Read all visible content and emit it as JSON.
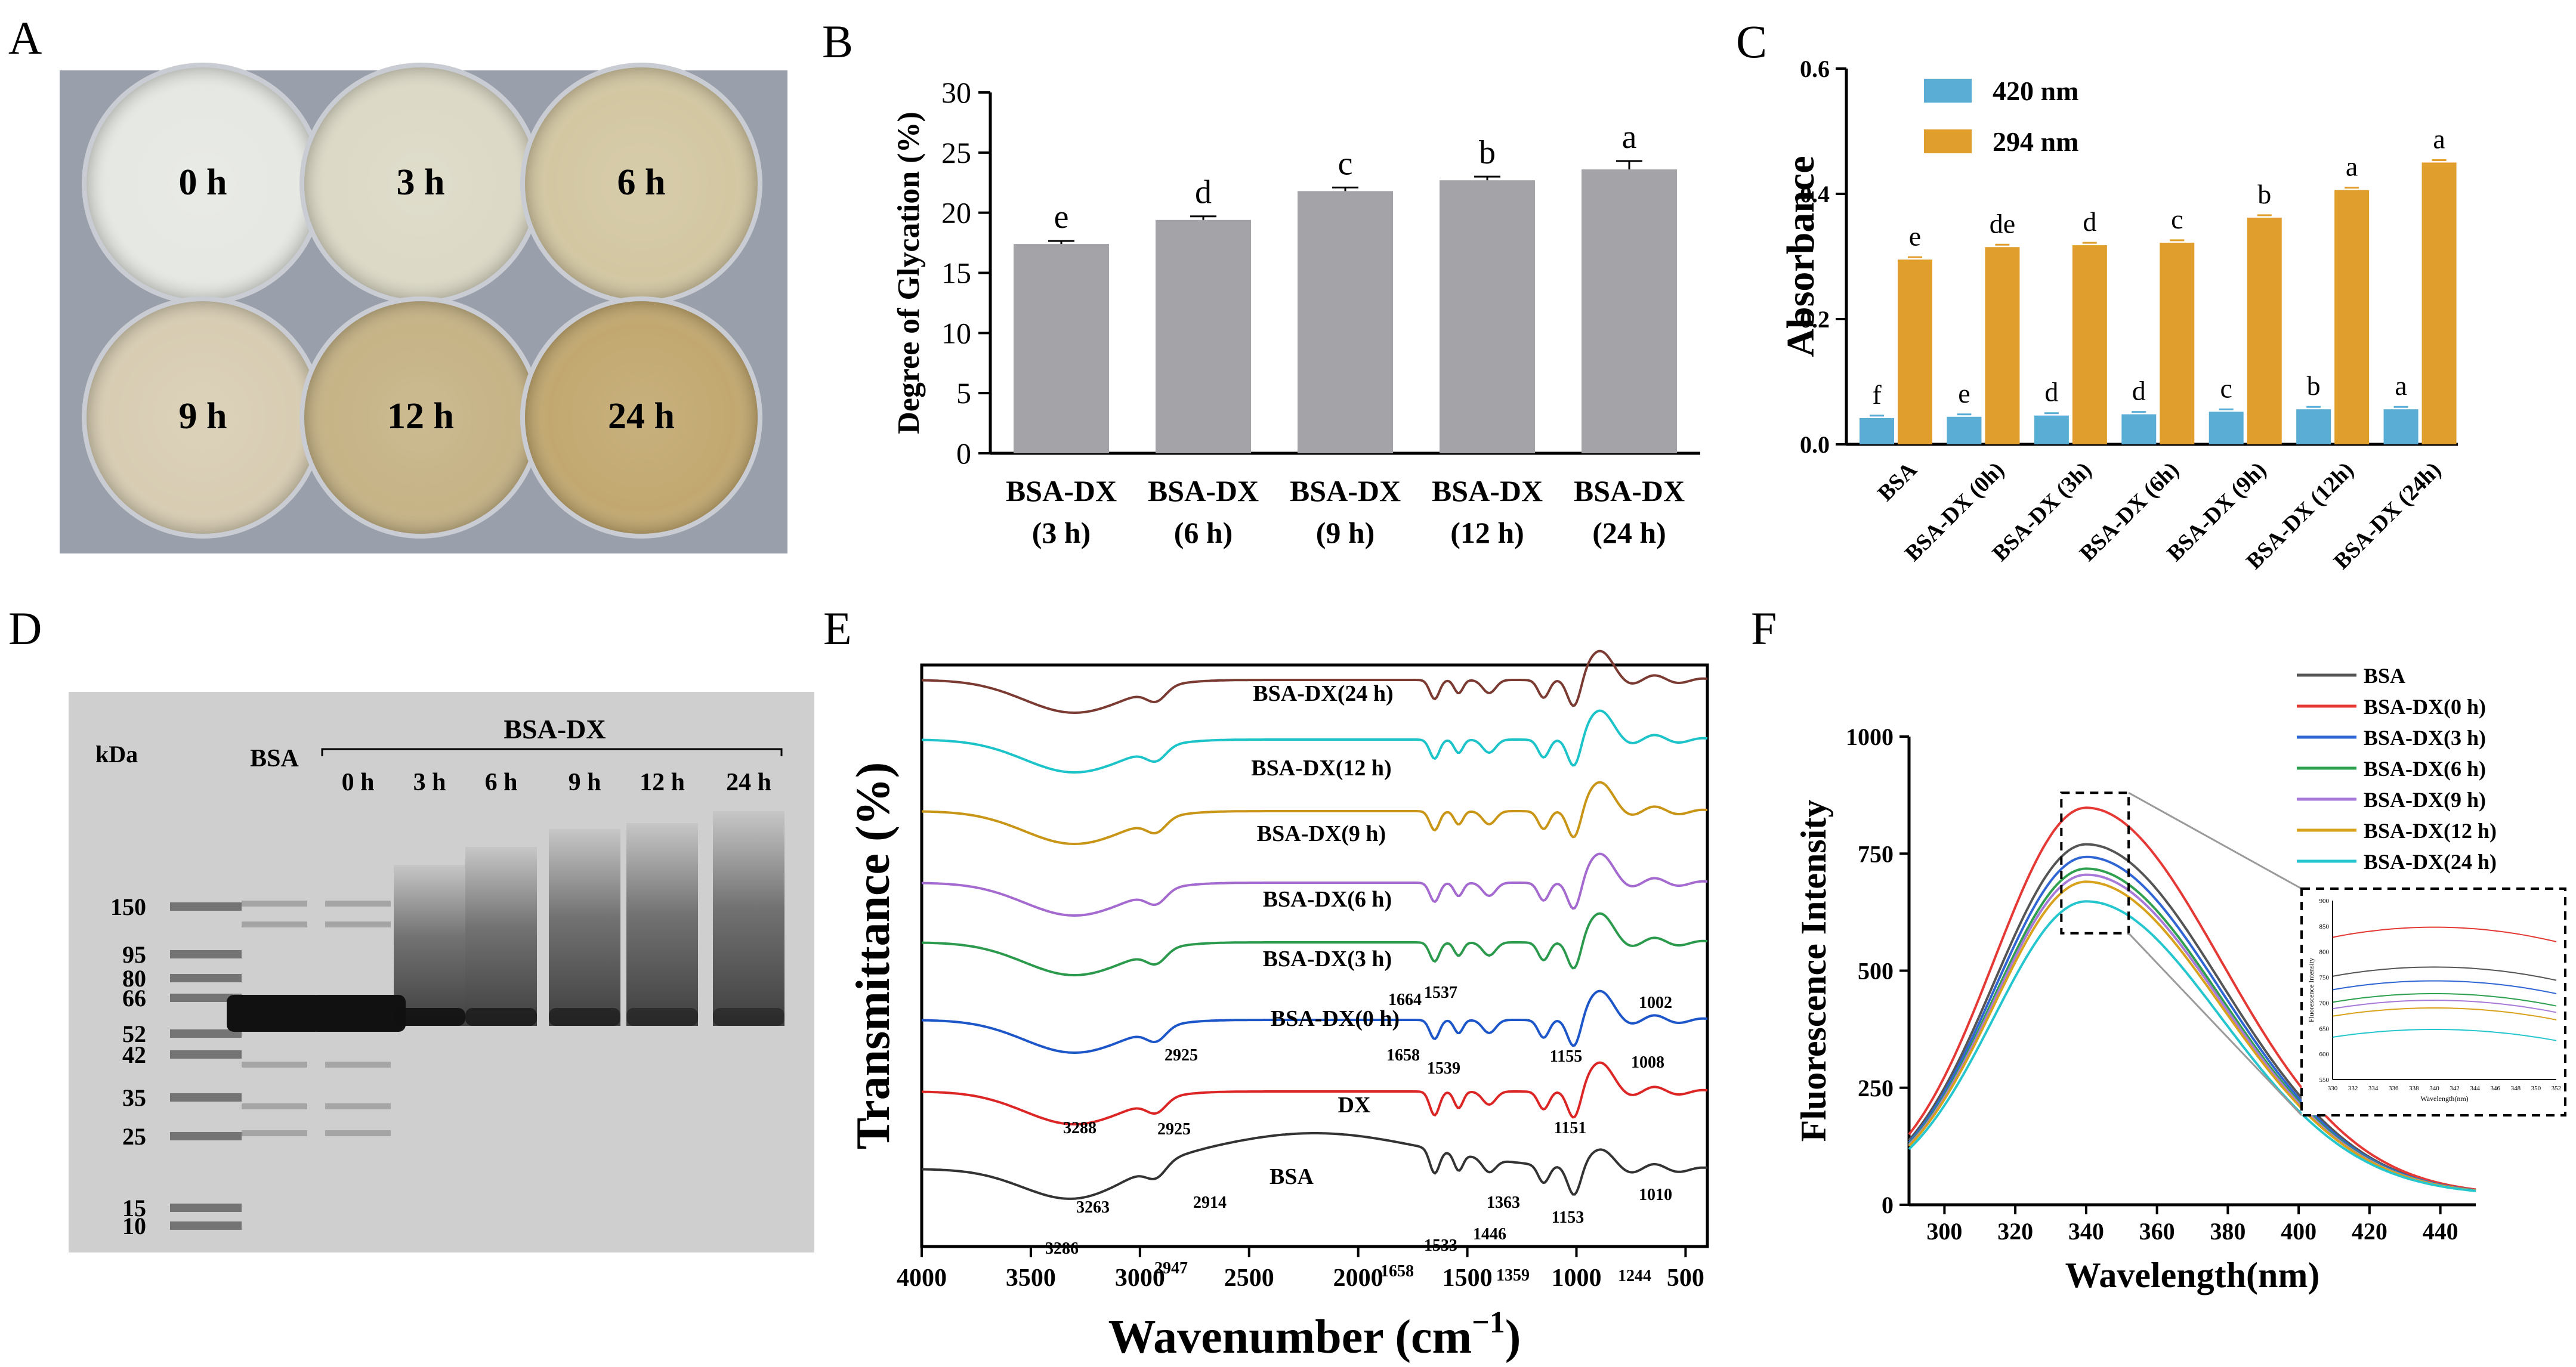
{
  "panel_letters": [
    "A",
    "B",
    "C",
    "D",
    "E",
    "F"
  ],
  "photo_A": {
    "dishes": [
      {
        "label": "0 h",
        "color": "#e6e8e3"
      },
      {
        "label": "3 h",
        "color": "#dcd9c6"
      },
      {
        "label": "6 h",
        "color": "#d3c7a2"
      },
      {
        "label": "9 h",
        "color": "#d8cdb3"
      },
      {
        "label": "12 h",
        "color": "#c6b386"
      },
      {
        "label": "24 h",
        "color": "#c2a870"
      }
    ]
  },
  "gel_D": {
    "kda_label": "kDa",
    "markers": [
      "150",
      "95",
      "80",
      "66",
      "52",
      "42",
      "35",
      "25",
      "15",
      "10"
    ],
    "lane_labels": [
      "BSA",
      "0 h",
      "3 h",
      "6 h",
      "9 h",
      "12 h",
      "24 h"
    ],
    "group_label": "BSA-DX"
  },
  "chart_data": [
    {
      "panel": "B",
      "type": "bar",
      "categories": [
        "BSA-DX (3 h)",
        "BSA-DX (6 h)",
        "BSA-DX (9 h)",
        "BSA-DX (12 h)",
        "BSA-DX (24 h)"
      ],
      "category_lines": [
        [
          "BSA-DX",
          "(3 h)"
        ],
        [
          "BSA-DX",
          "(6 h)"
        ],
        [
          "BSA-DX",
          "(9 h)"
        ],
        [
          "BSA-DX",
          "(12 h)"
        ],
        [
          "BSA-DX",
          "(24 h)"
        ]
      ],
      "values": [
        17.4,
        19.4,
        21.8,
        22.7,
        23.6
      ],
      "errors": [
        0.25,
        0.3,
        0.3,
        0.3,
        0.7
      ],
      "letters": [
        "e",
        "d",
        "c",
        "b",
        "a"
      ],
      "ylabel": "Degree of Glycation (%)",
      "ylim": [
        0,
        30
      ],
      "yticks": [
        "0",
        "5",
        "10",
        "15",
        "20",
        "25",
        "30"
      ],
      "color": "#a4a4a8"
    },
    {
      "panel": "C",
      "type": "bar",
      "categories": [
        "BSA",
        "BSA-DX (0h)",
        "BSA-DX (3h)",
        "BSA-DX (6h)",
        "BSA-DX (9h)",
        "BSA-DX (12h)",
        "BSA-DX (24h)"
      ],
      "series": [
        {
          "name": "420 nm",
          "color": "#5aaed6",
          "values": [
            0.042,
            0.044,
            0.046,
            0.048,
            0.052,
            0.056,
            0.056
          ],
          "letters": [
            "f",
            "e",
            "d",
            "d",
            "c",
            "b",
            "a"
          ]
        },
        {
          "name": "294 nm",
          "color": "#e09e2c",
          "values": [
            0.295,
            0.315,
            0.318,
            0.322,
            0.362,
            0.406,
            0.45
          ],
          "letters": [
            "e",
            "de",
            "d",
            "c",
            "b",
            "a",
            "a"
          ]
        }
      ],
      "ylabel": "Absorbance",
      "ylim": [
        0,
        0.6
      ],
      "yticks": [
        "0.0",
        "0.2",
        "0.4",
        "0.6"
      ],
      "legend": "top-left"
    },
    {
      "panel": "E",
      "type": "line",
      "xlabel": "Wavenumber (cm",
      "xlabel_sup": "−1",
      "xlabel_close": ")",
      "ylabel": "Transmittance (%)",
      "xlim": [
        4000,
        400
      ],
      "xticks": [
        "4000",
        "3500",
        "3000",
        "2500",
        "2000",
        "1500",
        "1000",
        "500"
      ],
      "series": [
        {
          "name": "BSA-DX(24 h)",
          "color": "#7b3b33"
        },
        {
          "name": "BSA-DX(12 h)",
          "color": "#1cc3c9"
        },
        {
          "name": "BSA-DX(9 h)",
          "color": "#c99517"
        },
        {
          "name": "BSA-DX(6 h)",
          "color": "#a46ad0"
        },
        {
          "name": "BSA-DX(3 h)",
          "color": "#2b9a4c"
        },
        {
          "name": "BSA-DX(0 h)",
          "color": "#1c56c8"
        },
        {
          "name": "DX",
          "color": "#dc2626"
        },
        {
          "name": "BSA",
          "color": "#333333"
        }
      ],
      "annotations": [
        "1664",
        "1537",
        "1002",
        "2925",
        "1155",
        "1658",
        "1539",
        "1008",
        "3288",
        "2925",
        "1151",
        "3263",
        "2914",
        "1363",
        "1010",
        "1153",
        "1533",
        "1446",
        "3286",
        "2947",
        "1658",
        "1359",
        "1244"
      ]
    },
    {
      "panel": "F",
      "type": "line",
      "xlabel": "Wavelength(nm)",
      "ylabel": "Fluorescence Intensity",
      "xlim": [
        290,
        450
      ],
      "ylim": [
        0,
        1000
      ],
      "xticks": [
        "300",
        "320",
        "340",
        "360",
        "380",
        "400",
        "420",
        "440"
      ],
      "yticks": [
        "0",
        "250",
        "500",
        "750",
        "1000"
      ],
      "series": [
        {
          "name": "BSA",
          "color": "#555555",
          "peak": 770
        },
        {
          "name": "BSA-DX(0 h)",
          "color": "#e53935",
          "peak": 848
        },
        {
          "name": "BSA-DX(3 h)",
          "color": "#2f66d4",
          "peak": 743
        },
        {
          "name": "BSA-DX(6 h)",
          "color": "#2ea04f",
          "peak": 718
        },
        {
          "name": "BSA-DX(9 h)",
          "color": "#a77ad9",
          "peak": 705
        },
        {
          "name": "BSA-DX(12 h)",
          "color": "#d9a21c",
          "peak": 690
        },
        {
          "name": "BSA-DX(24 h)",
          "color": "#26c6cf",
          "peak": 648
        }
      ],
      "inset": {
        "ylabel": "Fluorescence Intensity",
        "xlabel": "Wavelength(nm)",
        "xticks": [
          "330",
          "332",
          "334",
          "336",
          "338",
          "340",
          "342",
          "344",
          "346",
          "348",
          "350",
          "352"
        ],
        "yticks": [
          "900",
          "850",
          "800",
          "750",
          "700",
          "650",
          "600",
          "550"
        ]
      }
    }
  ]
}
